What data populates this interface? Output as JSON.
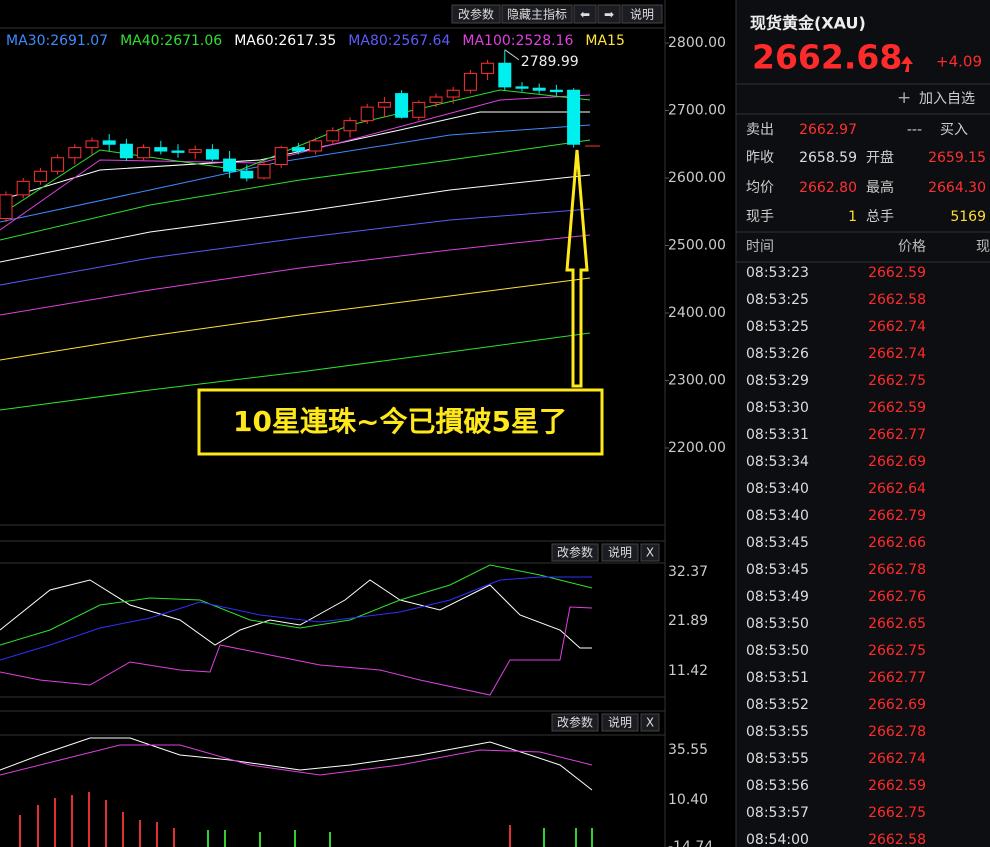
{
  "toolbar": {
    "buttons": [
      "改参数",
      "隐藏主指标",
      "⬅",
      "➡",
      "说明"
    ]
  },
  "ma_legend": [
    {
      "text": "MA30:2691.07",
      "color": "#3d8cff"
    },
    {
      "text": "MA40:2671.06",
      "color": "#2fe02f"
    },
    {
      "text": "MA60:2617.35",
      "color": "#ffffff"
    },
    {
      "text": "MA80:2567.64",
      "color": "#5b5bff"
    },
    {
      "text": "MA100:2528.16",
      "color": "#e040e0"
    },
    {
      "text": "MA15",
      "color": "#ffe23a"
    }
  ],
  "price_axis": {
    "ticks": [
      {
        "value": 2800,
        "label": "2800.00"
      },
      {
        "value": 2700,
        "label": "2700.00"
      },
      {
        "value": 2600,
        "label": "2600.00"
      },
      {
        "value": 2500,
        "label": "2500.00"
      },
      {
        "value": 2400,
        "label": "2400.00"
      },
      {
        "value": 2300,
        "label": "2300.00"
      },
      {
        "value": 2200,
        "label": "2200.00"
      }
    ]
  },
  "candles": {
    "max_label": "2789.99",
    "ohlc": [
      [
        2540,
        2580,
        2535,
        2575
      ],
      [
        2575,
        2600,
        2570,
        2595
      ],
      [
        2595,
        2615,
        2590,
        2610
      ],
      [
        2610,
        2635,
        2605,
        2630
      ],
      [
        2630,
        2650,
        2620,
        2645
      ],
      [
        2645,
        2660,
        2635,
        2655
      ],
      [
        2655,
        2665,
        2640,
        2650
      ],
      [
        2650,
        2658,
        2625,
        2630
      ],
      [
        2630,
        2650,
        2625,
        2645
      ],
      [
        2645,
        2655,
        2635,
        2640
      ],
      [
        2640,
        2650,
        2630,
        2638
      ],
      [
        2638,
        2648,
        2628,
        2642
      ],
      [
        2642,
        2650,
        2625,
        2628
      ],
      [
        2628,
        2640,
        2600,
        2610
      ],
      [
        2610,
        2620,
        2595,
        2600
      ],
      [
        2600,
        2625,
        2598,
        2620
      ],
      [
        2620,
        2648,
        2615,
        2645
      ],
      [
        2645,
        2652,
        2635,
        2640
      ],
      [
        2640,
        2660,
        2635,
        2655
      ],
      [
        2655,
        2675,
        2650,
        2670
      ],
      [
        2670,
        2690,
        2660,
        2685
      ],
      [
        2685,
        2710,
        2680,
        2705
      ],
      [
        2705,
        2720,
        2690,
        2712
      ],
      [
        2725,
        2730,
        2688,
        2690
      ],
      [
        2690,
        2715,
        2685,
        2712
      ],
      [
        2712,
        2725,
        2705,
        2720
      ],
      [
        2720,
        2735,
        2710,
        2730
      ],
      [
        2730,
        2760,
        2725,
        2755
      ],
      [
        2755,
        2775,
        2745,
        2770
      ],
      [
        2770,
        2789.99,
        2730,
        2735
      ],
      [
        2735,
        2742,
        2728,
        2733
      ],
      [
        2733,
        2740,
        2725,
        2730
      ],
      [
        2730,
        2738,
        2722,
        2728
      ],
      [
        2730,
        2733,
        2645,
        2650
      ]
    ]
  },
  "annotation": "10星連珠~今已摜破5星了",
  "panel2": {
    "buttons": [
      "改参数",
      "说明",
      "X"
    ],
    "ticks": [
      "32.37",
      "21.89",
      "11.42"
    ]
  },
  "panel3": {
    "buttons": [
      "改参数",
      "说明",
      "X"
    ],
    "ticks": [
      "35.55",
      "10.40",
      "-14.74"
    ]
  },
  "quote": {
    "title": "现货黄金(XAU)",
    "price": "2662.68",
    "change": "+4.09",
    "add": "加入自选",
    "stats": [
      [
        "卖出",
        "2662.97",
        "---",
        "买入"
      ],
      [
        "昨收",
        "2658.59",
        "开盘",
        "2659.15"
      ],
      [
        "均价",
        "2662.80",
        "最高",
        "2664.30"
      ],
      [
        "现手",
        "1",
        "总手",
        "5169"
      ]
    ],
    "trade_header": [
      "时间",
      "价格",
      "现"
    ],
    "trades": [
      [
        "08:53:23",
        "2662.59"
      ],
      [
        "08:53:25",
        "2662.58"
      ],
      [
        "08:53:25",
        "2662.74"
      ],
      [
        "08:53:26",
        "2662.74"
      ],
      [
        "08:53:29",
        "2662.75"
      ],
      [
        "08:53:30",
        "2662.59"
      ],
      [
        "08:53:31",
        "2662.77"
      ],
      [
        "08:53:34",
        "2662.69"
      ],
      [
        "08:53:40",
        "2662.64"
      ],
      [
        "08:53:40",
        "2662.79"
      ],
      [
        "08:53:45",
        "2662.66"
      ],
      [
        "08:53:45",
        "2662.78"
      ],
      [
        "08:53:49",
        "2662.76"
      ],
      [
        "08:53:50",
        "2662.65"
      ],
      [
        "08:53:50",
        "2662.75"
      ],
      [
        "08:53:51",
        "2662.77"
      ],
      [
        "08:53:52",
        "2662.69"
      ],
      [
        "08:53:55",
        "2662.78"
      ],
      [
        "08:53:55",
        "2662.74"
      ],
      [
        "08:53:56",
        "2662.59"
      ],
      [
        "08:53:57",
        "2662.75"
      ],
      [
        "08:54:00",
        "2662.58"
      ]
    ]
  }
}
